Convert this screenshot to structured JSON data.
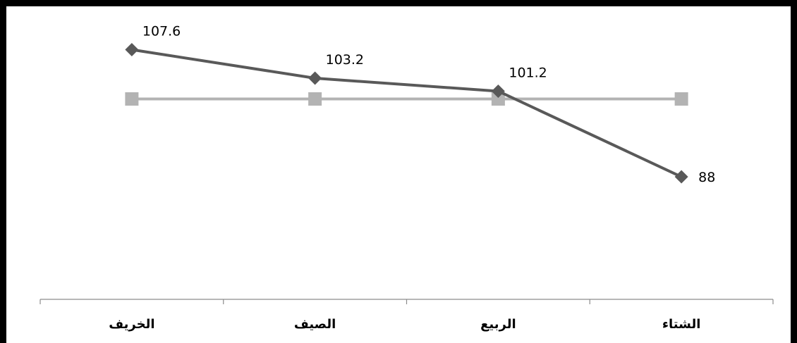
{
  "chart_data": {
    "type": "line",
    "categories": [
      "الخريف",
      "الصيف",
      "الربيع",
      "الشتاء"
    ],
    "series": [
      {
        "values": [
          107.6,
          103.2,
          101.2,
          88
        ],
        "marker": "diamond",
        "color": "#595959",
        "show_labels": true
      },
      {
        "values": [
          100,
          100,
          100,
          100
        ],
        "marker": "square",
        "color": "#b3b3b3",
        "show_labels": false
      }
    ],
    "data_labels": [
      "107.6",
      "103.2",
      "101.2",
      "88"
    ],
    "ylim": [
      60,
      115
    ],
    "grid": false,
    "legend": "none"
  }
}
